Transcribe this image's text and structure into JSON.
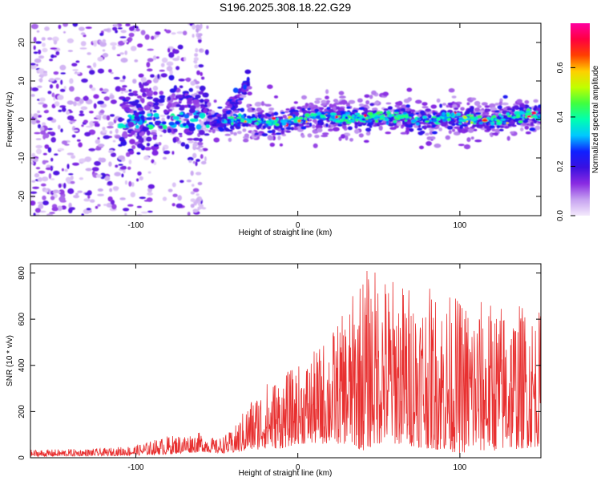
{
  "title": "S196.2025.308.18.22.G29",
  "chart_data": [
    {
      "type": "heatmap",
      "xlabel": "Height of straight line (km)",
      "ylabel": "Frequency (Hz)",
      "xlim": [
        -165,
        150
      ],
      "ylim": [
        -25,
        25
      ],
      "xticks": [
        -100,
        0,
        100
      ],
      "yticks": [
        -20,
        -10,
        0,
        10,
        20
      ],
      "colorbar": {
        "label": "Normalized spectral amplitude",
        "range": [
          0,
          0.78
        ],
        "ticks": [
          0.0,
          0.2,
          0.4,
          0.6
        ],
        "tick_labels": [
          "0.0",
          "0.2",
          "0.4",
          "0.6"
        ],
        "colors": [
          "#f4eafc",
          "#c6a2f0",
          "#8a2be2",
          "#3a10e0",
          "#1020ff",
          "#00c8ff",
          "#00ffb0",
          "#40ff40",
          "#c0ff00",
          "#ffd000",
          "#ff4000",
          "#ff0040",
          "#ff00a0"
        ]
      },
      "ridge": {
        "start_km": -55,
        "end_km": 150,
        "freq_hz": 0,
        "typical_amplitude": 0.35,
        "peak_amplitude": 0.72
      },
      "noise_region_km": [
        -165,
        -55
      ],
      "noise_freq_range_hz": [
        -25,
        25
      ]
    },
    {
      "type": "line",
      "xlabel": "Height of straight line (km)",
      "ylabel": "SNR (10 * v/v)",
      "xlim": [
        -165,
        150
      ],
      "ylim": [
        0,
        840
      ],
      "xticks": [
        -100,
        0,
        100
      ],
      "yticks": [
        0,
        200,
        400,
        600,
        800
      ],
      "series": [
        {
          "name": "SNR",
          "color": "#e83030",
          "envelope_x": [
            -165,
            -120,
            -100,
            -80,
            -60,
            -50,
            -40,
            -30,
            -20,
            -10,
            0,
            10,
            20,
            30,
            40,
            50,
            60,
            80,
            100,
            120,
            140,
            150
          ],
          "envelope_max": [
            35,
            40,
            55,
            95,
            110,
            80,
            120,
            250,
            330,
            360,
            400,
            460,
            550,
            640,
            820,
            830,
            780,
            740,
            700,
            680,
            670,
            640
          ],
          "envelope_min": [
            5,
            8,
            10,
            15,
            25,
            20,
            20,
            30,
            40,
            40,
            60,
            60,
            60,
            60,
            30,
            60,
            60,
            40,
            20,
            30,
            40,
            50
          ]
        }
      ]
    }
  ]
}
